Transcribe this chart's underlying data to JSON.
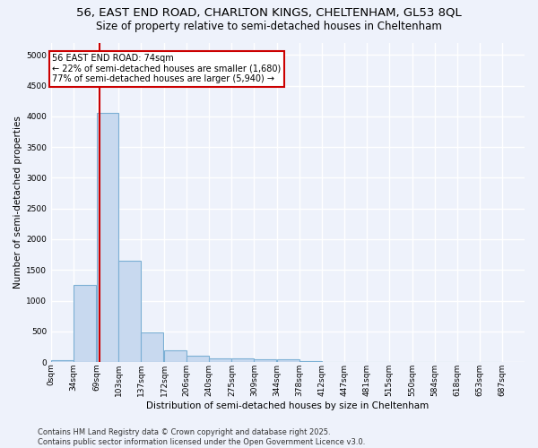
{
  "title": "56, EAST END ROAD, CHARLTON KINGS, CHELTENHAM, GL53 8QL",
  "subtitle": "Size of property relative to semi-detached houses in Cheltenham",
  "xlabel": "Distribution of semi-detached houses by size in Cheltenham",
  "ylabel": "Number of semi-detached properties",
  "bin_labels": [
    "0sqm",
    "34sqm",
    "69sqm",
    "103sqm",
    "137sqm",
    "172sqm",
    "206sqm",
    "240sqm",
    "275sqm",
    "309sqm",
    "344sqm",
    "378sqm",
    "412sqm",
    "447sqm",
    "481sqm",
    "515sqm",
    "550sqm",
    "584sqm",
    "618sqm",
    "653sqm",
    "687sqm"
  ],
  "bin_edges": [
    0,
    34,
    69,
    103,
    137,
    172,
    206,
    240,
    275,
    309,
    344,
    378,
    412,
    447,
    481,
    515,
    550,
    584,
    618,
    653,
    687
  ],
  "bar_heights": [
    30,
    1250,
    4050,
    1650,
    480,
    190,
    110,
    60,
    55,
    45,
    40,
    10,
    5,
    3,
    2,
    1,
    1,
    0,
    0,
    0
  ],
  "bar_color": "#c8d9ef",
  "bar_edge_color": "#7bafd4",
  "property_size": 74,
  "vline_color": "#cc0000",
  "annotation_line1": "56 EAST END ROAD: 74sqm",
  "annotation_line2": "← 22% of semi-detached houses are smaller (1,680)",
  "annotation_line3": "77% of semi-detached houses are larger (5,940) →",
  "annotation_box_color": "#ffffff",
  "annotation_border_color": "#cc0000",
  "ylim": [
    0,
    5200
  ],
  "footer_line1": "Contains HM Land Registry data © Crown copyright and database right 2025.",
  "footer_line2": "Contains public sector information licensed under the Open Government Licence v3.0.",
  "bg_color": "#eef2fb",
  "grid_color": "#ffffff",
  "title_fontsize": 9.5,
  "subtitle_fontsize": 8.5,
  "axis_label_fontsize": 7.5,
  "tick_fontsize": 6.5,
  "annotation_fontsize": 7,
  "footer_fontsize": 6
}
